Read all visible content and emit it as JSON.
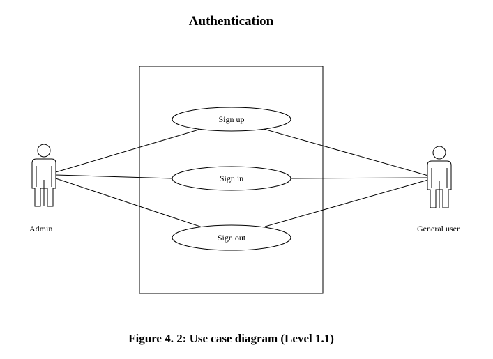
{
  "title": "Authentication",
  "caption": "Figure 4. 2: Use case diagram (Level 1.1)",
  "actors": [
    {
      "id": "admin",
      "label": "Admin"
    },
    {
      "id": "general-user",
      "label": "General user"
    }
  ],
  "use_cases": [
    {
      "id": "sign-up",
      "label": "Sign up"
    },
    {
      "id": "sign-in",
      "label": "Sign in"
    },
    {
      "id": "sign-out",
      "label": "Sign out"
    }
  ],
  "associations": [
    [
      "admin",
      "sign-up"
    ],
    [
      "admin",
      "sign-in"
    ],
    [
      "admin",
      "sign-out"
    ],
    [
      "general-user",
      "sign-up"
    ],
    [
      "general-user",
      "sign-in"
    ],
    [
      "general-user",
      "sign-out"
    ]
  ]
}
